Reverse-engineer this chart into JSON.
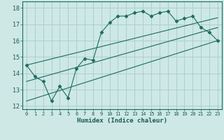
{
  "title": "",
  "xlabel": "Humidex (Indice chaleur)",
  "ylabel": "",
  "bg_color": "#cde8e5",
  "line_color": "#1a6b60",
  "grid_color": "#aecfcc",
  "xlim": [
    -0.5,
    23.5
  ],
  "ylim": [
    11.8,
    18.4
  ],
  "xticks": [
    0,
    1,
    2,
    3,
    4,
    5,
    6,
    7,
    8,
    9,
    10,
    11,
    12,
    13,
    14,
    15,
    16,
    17,
    18,
    19,
    20,
    21,
    22,
    23
  ],
  "yticks": [
    12,
    13,
    14,
    15,
    16,
    17,
    18
  ],
  "series": [
    {
      "x": [
        0,
        1,
        2,
        3,
        4,
        5,
        6,
        7,
        8,
        9,
        10,
        11,
        12,
        13,
        14,
        15,
        16,
        17,
        18,
        19,
        20,
        21,
        22,
        23
      ],
      "y": [
        14.5,
        13.8,
        13.5,
        12.3,
        13.2,
        12.5,
        14.3,
        14.9,
        14.8,
        16.5,
        17.1,
        17.5,
        17.5,
        17.7,
        17.8,
        17.5,
        17.7,
        17.8,
        17.2,
        17.35,
        17.5,
        16.8,
        16.5,
        16.0
      ],
      "marker": "D",
      "markersize": 2.5
    },
    {
      "x": [
        0,
        23
      ],
      "y": [
        12.3,
        16.0
      ],
      "marker": null
    },
    {
      "x": [
        0,
        23
      ],
      "y": [
        13.5,
        16.8
      ],
      "marker": null
    },
    {
      "x": [
        0,
        23
      ],
      "y": [
        14.5,
        17.4
      ],
      "marker": null
    }
  ]
}
